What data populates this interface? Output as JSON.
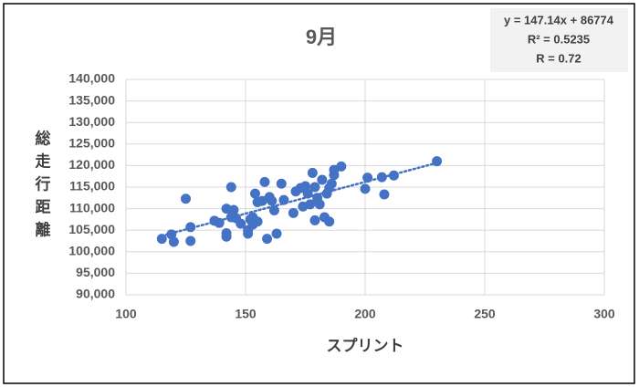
{
  "chart_data": {
    "type": "scatter",
    "title": "9月",
    "x_label": "スプリント",
    "y_label": "総走行距離",
    "color": "#4472c4",
    "grid": true,
    "xlim": [
      100,
      300
    ],
    "xticks": [
      100,
      150,
      200,
      250,
      300
    ],
    "ylim": [
      90000,
      140000
    ],
    "yticks": [
      {
        "value": 90000,
        "label": "90,000"
      },
      {
        "value": 95000,
        "label": "95,000"
      },
      {
        "value": 100000,
        "label": "100,000"
      },
      {
        "value": 105000,
        "label": "105,000"
      },
      {
        "value": 110000,
        "label": "110,000"
      },
      {
        "value": 115000,
        "label": "115,000"
      },
      {
        "value": 120000,
        "label": "120,000"
      },
      {
        "value": 125000,
        "label": "125,000"
      },
      {
        "value": 130000,
        "label": "130,000"
      },
      {
        "value": 135000,
        "label": "135,000"
      },
      {
        "value": 140000,
        "label": "140,000"
      }
    ],
    "x": [
      115,
      119,
      120,
      125,
      127,
      127,
      137,
      139,
      142,
      142,
      142,
      144,
      144,
      145,
      146,
      148,
      151,
      151,
      152,
      153,
      153,
      154,
      155,
      155,
      157,
      158,
      159,
      160,
      161,
      162,
      163,
      165,
      166,
      170,
      171,
      173,
      174,
      175,
      176,
      177,
      178,
      179,
      179,
      180,
      181,
      182,
      183,
      184,
      185,
      185,
      186,
      187,
      187,
      190,
      200,
      201,
      207,
      208,
      212,
      230
    ],
    "values": [
      103000,
      104000,
      102300,
      112300,
      102500,
      105700,
      107200,
      106700,
      104300,
      103500,
      110000,
      115000,
      108000,
      109700,
      107800,
      106500,
      105000,
      104200,
      107500,
      106300,
      108000,
      113500,
      107000,
      111500,
      111800,
      116200,
      103000,
      112700,
      111800,
      109600,
      104200,
      115800,
      112000,
      109000,
      114000,
      114800,
      110500,
      115200,
      113500,
      111000,
      118300,
      107300,
      115000,
      112500,
      111000,
      116700,
      108000,
      113500,
      107000,
      114800,
      115800,
      117800,
      119000,
      119800,
      114600,
      117200,
      117300,
      113300,
      117700,
      121000
    ],
    "trendline": {
      "slope": 147.14,
      "intercept": 86774,
      "color": "#4472c4"
    },
    "annotation": [
      "y = 147.14x + 86774",
      "R² = 0.5235",
      "R = 0.72"
    ]
  }
}
